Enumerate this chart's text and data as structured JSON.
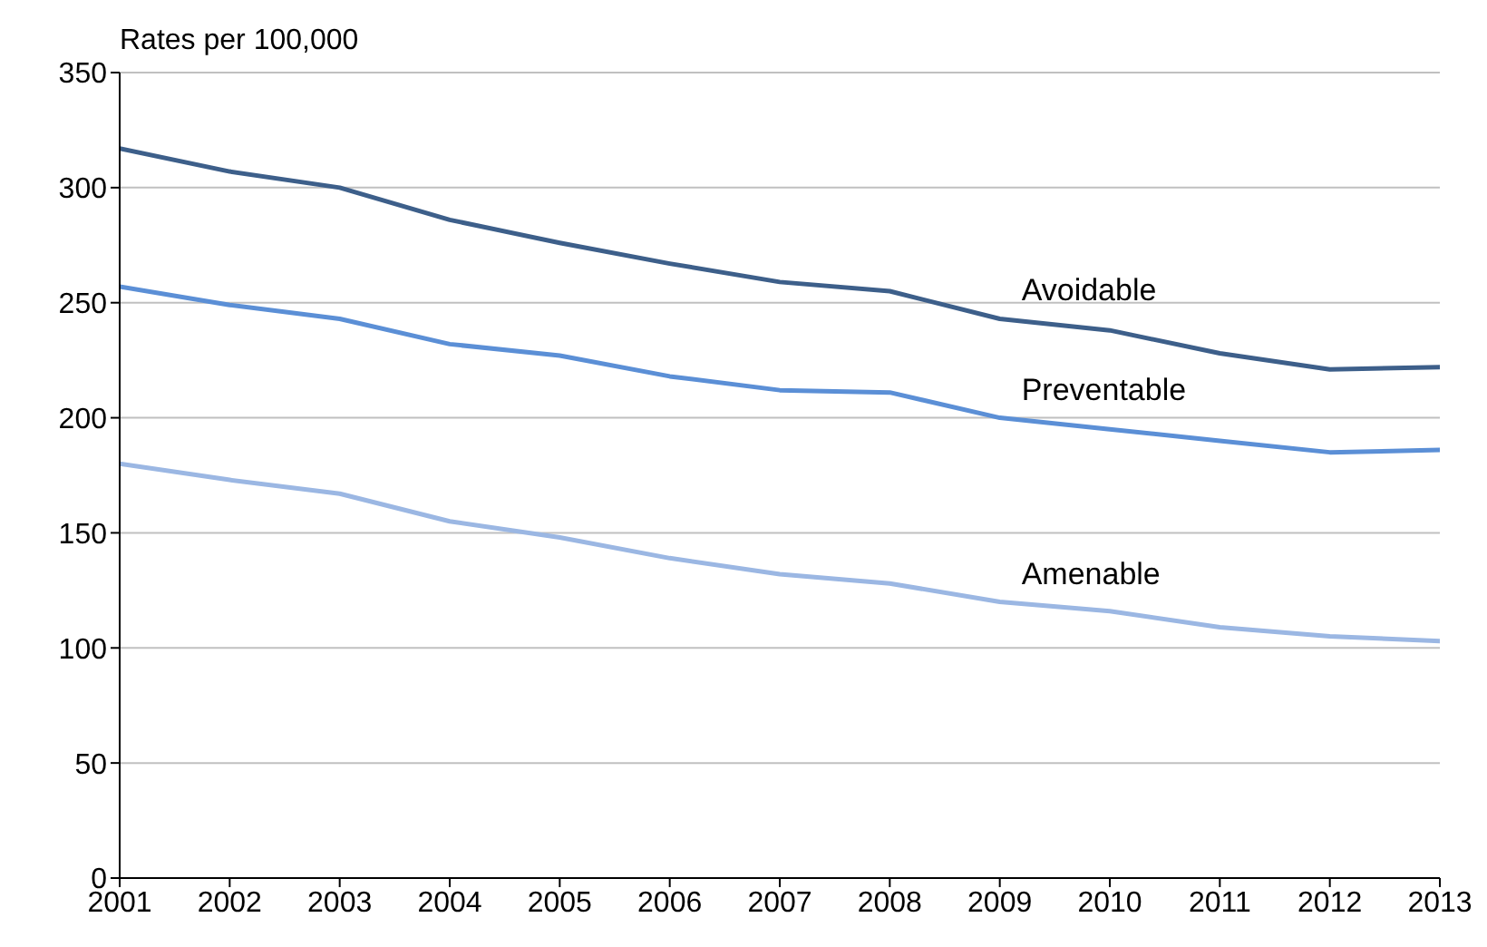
{
  "chart_data": {
    "type": "line",
    "ylabel": "Rates per 100,000",
    "x": [
      2001,
      2002,
      2003,
      2004,
      2005,
      2006,
      2007,
      2008,
      2009,
      2010,
      2011,
      2012,
      2013
    ],
    "xlim": [
      2001,
      2013
    ],
    "xticks": [
      2001,
      2002,
      2003,
      2004,
      2005,
      2006,
      2007,
      2008,
      2009,
      2010,
      2011,
      2012,
      2013
    ],
    "ylim": [
      0,
      350
    ],
    "yticks": [
      0,
      50,
      100,
      150,
      200,
      250,
      300,
      350
    ],
    "grid": "y",
    "legend": false,
    "marker": "none",
    "line_style": "solid",
    "series": [
      {
        "name": "Avoidable",
        "color": "#3d5f8a",
        "values": [
          317,
          307,
          300,
          286,
          276,
          267,
          259,
          255,
          243,
          238,
          228,
          221,
          222
        ]
      },
      {
        "name": "Preventable",
        "color": "#5b8fd6",
        "values": [
          257,
          249,
          243,
          232,
          227,
          218,
          212,
          211,
          200,
          195,
          190,
          185,
          186
        ]
      },
      {
        "name": "Amenable",
        "color": "#9bb7e3",
        "values": [
          180,
          173,
          167,
          155,
          148,
          139,
          132,
          128,
          120,
          116,
          109,
          105,
          103
        ]
      }
    ]
  }
}
